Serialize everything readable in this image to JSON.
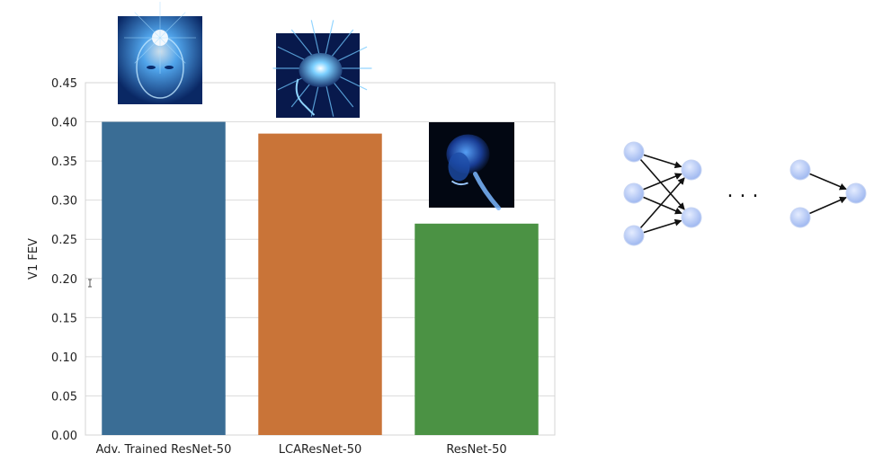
{
  "chart_data": {
    "type": "bar",
    "categories": [
      "Adv. Trained ResNet-50",
      "LCAResNet-50",
      "ResNet-50"
    ],
    "values": [
      0.4,
      0.385,
      0.27
    ],
    "colors": [
      "#3a6d95",
      "#c97438",
      "#4b9244"
    ],
    "bar_images": [
      "glowing-head-icon",
      "glowing-brain-icon",
      "xray-skull-icon"
    ],
    "title": "",
    "xlabel": "",
    "ylabel": "V1 FEV",
    "ylim": [
      0,
      0.45
    ],
    "yticks": [
      "0.00",
      "0.05",
      "0.10",
      "0.15",
      "0.20",
      "0.25",
      "0.30",
      "0.35",
      "0.40",
      "0.45"
    ],
    "grid": true
  },
  "network_diagram": {
    "ellipsis": ". . ."
  }
}
